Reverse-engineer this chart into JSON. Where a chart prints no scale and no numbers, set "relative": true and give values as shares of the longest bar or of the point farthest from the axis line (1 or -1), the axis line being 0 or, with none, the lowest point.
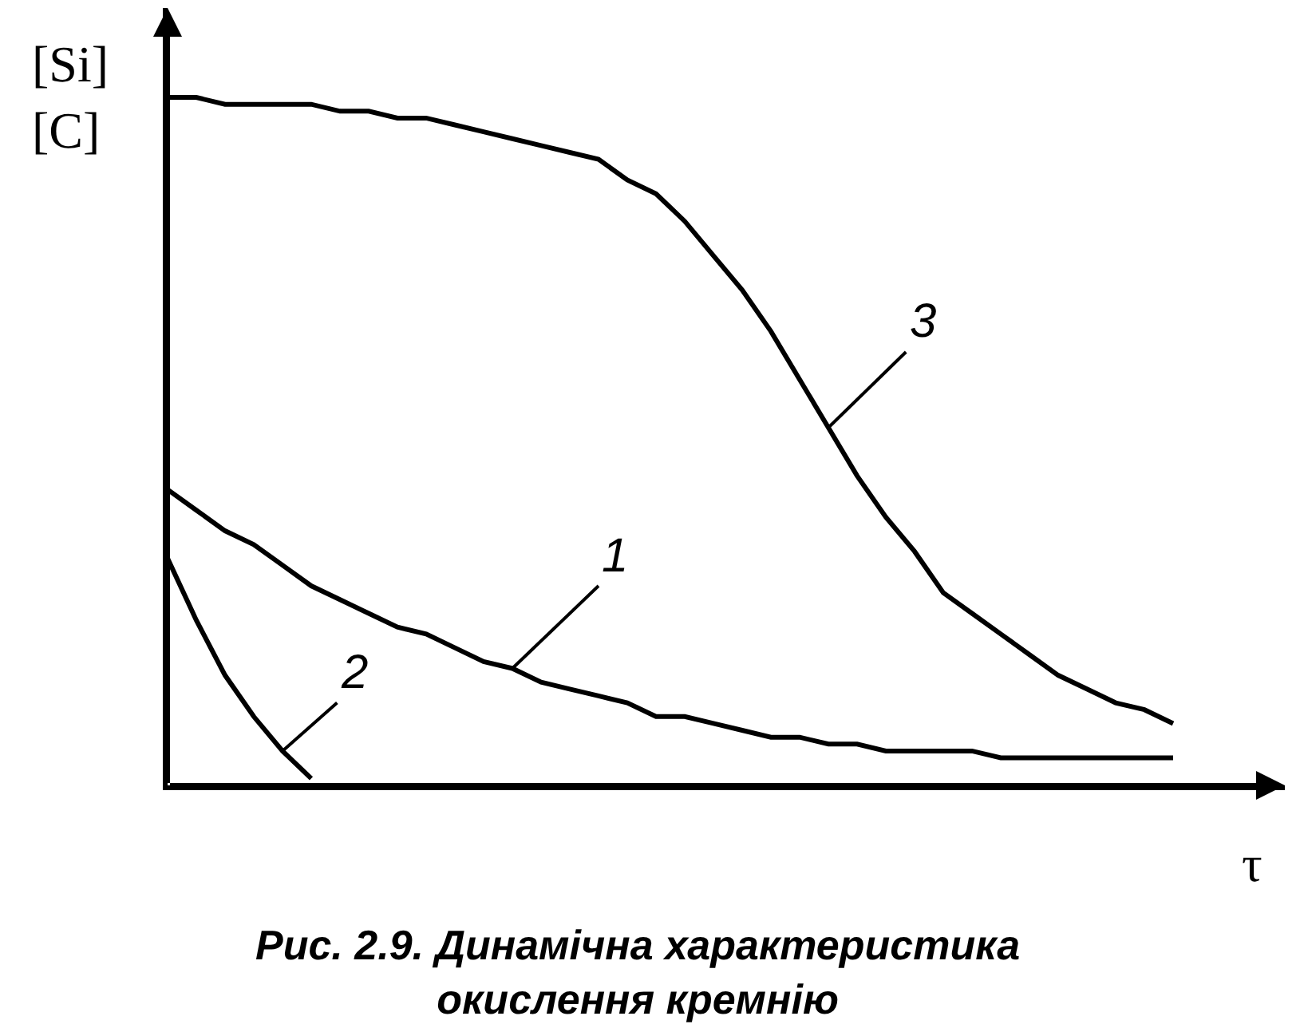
{
  "chart_data": {
    "type": "line",
    "relative": true,
    "title": "Рис. 2.9. Динамічна характеристика\nокислення кремнію",
    "ylabel": "[Si]\n[C]",
    "xlabel": "τ",
    "categories": [
      null,
      null,
      null,
      null,
      null,
      null,
      null,
      null,
      null,
      null,
      null,
      null,
      null,
      null,
      null,
      null,
      null,
      null,
      null,
      null,
      null,
      null,
      null,
      null,
      null,
      null,
      null,
      null,
      null,
      null,
      null,
      null,
      null,
      null,
      null,
      null
    ],
    "series": [
      {
        "name": "1",
        "color": "#000000",
        "values": [
          0.43,
          0.4,
          0.37,
          0.35,
          0.32,
          0.29,
          0.27,
          0.25,
          0.23,
          0.22,
          0.2,
          0.18,
          0.17,
          0.15,
          0.14,
          0.13,
          0.12,
          0.1,
          0.1,
          0.09,
          0.08,
          0.07,
          0.07,
          0.06,
          0.06,
          0.05,
          0.05,
          0.05,
          0.05,
          0.04,
          0.04,
          0.04,
          0.04,
          0.04,
          0.04,
          0.04
        ]
      },
      {
        "name": "2",
        "color": "#000000",
        "values": [
          0.33,
          0.24,
          0.16,
          0.1,
          0.05,
          0.01,
          null,
          null,
          null,
          null,
          null,
          null,
          null,
          null,
          null,
          null,
          null,
          null,
          null,
          null,
          null,
          null,
          null,
          null,
          null,
          null,
          null,
          null,
          null,
          null,
          null,
          null,
          null,
          null,
          null,
          null
        ]
      },
      {
        "name": "3",
        "color": "#000000",
        "values": [
          1.0,
          1.0,
          0.99,
          0.99,
          0.99,
          0.99,
          0.98,
          0.98,
          0.97,
          0.97,
          0.96,
          0.95,
          0.94,
          0.93,
          0.92,
          0.91,
          0.88,
          0.86,
          0.82,
          0.77,
          0.72,
          0.66,
          0.59,
          0.52,
          0.45,
          0.39,
          0.34,
          0.28,
          0.25,
          0.22,
          0.19,
          0.16,
          0.14,
          0.12,
          0.11,
          0.09
        ]
      }
    ],
    "legend": false,
    "line_style": "solid",
    "marker": "none"
  }
}
